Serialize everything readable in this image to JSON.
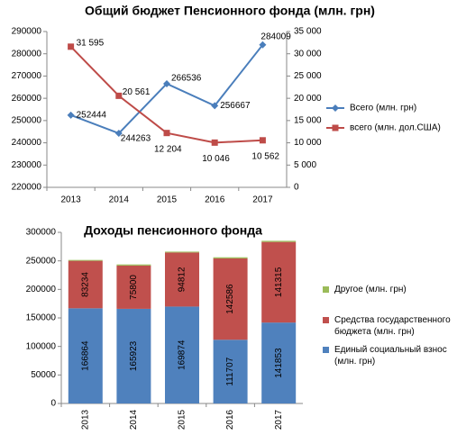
{
  "chart_data": [
    {
      "type": "line",
      "title": "Общий бюджет Пенсионного фонда (млн. грн)",
      "categories": [
        "2013",
        "2014",
        "2015",
        "2016",
        "2017"
      ],
      "series": [
        {
          "name": "Всего (млн. грн)",
          "color": "#4a7ebb",
          "marker": "diamond",
          "values": [
            252444,
            244263,
            266536,
            256667,
            284009
          ]
        },
        {
          "name": "всего (млн. дол.США)",
          "color": "#be4b48",
          "marker": "square",
          "axis": "y2",
          "values": [
            31595,
            20561,
            12204,
            10046,
            10562
          ],
          "value_labels": [
            "31 595",
            "20 561",
            "12 204",
            "10 046",
            "10 562"
          ]
        }
      ],
      "ylim": [
        220000,
        290000
      ],
      "yticks": [
        220000,
        230000,
        240000,
        250000,
        260000,
        270000,
        280000,
        290000
      ],
      "y2lim": [
        0,
        35000
      ],
      "y2ticks": [
        0,
        {
          "value": 5000,
          "label": "5 000"
        },
        {
          "value": 10000,
          "label": "10 000"
        },
        {
          "value": 15000,
          "label": "15 000"
        },
        {
          "value": 20000,
          "label": "20 000"
        },
        {
          "value": 25000,
          "label": "25 000"
        },
        {
          "value": 30000,
          "label": "30 000"
        },
        {
          "value": 35000,
          "label": "35 000"
        }
      ],
      "grid": false,
      "legend": "right"
    },
    {
      "type": "stacked-bar",
      "title": "Доходы пенсионного фонда",
      "categories": [
        "2013",
        "2014",
        "2015",
        "2016",
        "2017"
      ],
      "series": [
        {
          "name": "Единый социальный взнос (млн. грн)",
          "color": "#4f81bd",
          "values": [
            166864,
            165923,
            169874,
            111707,
            141853
          ]
        },
        {
          "name": "Средства государственного бюджета (млн. грн)",
          "color": "#c0504d",
          "values": [
            83234,
            75800,
            94812,
            142586,
            141315
          ]
        },
        {
          "name": "Другое (млн. грн)",
          "color": "#9bbb59",
          "values": [
            1500,
            2000,
            1500,
            2000,
            2000
          ]
        }
      ],
      "ylim": [
        0,
        300000
      ],
      "yticks": [
        0,
        50000,
        100000,
        150000,
        200000,
        250000,
        300000
      ],
      "grid": false,
      "legend": "right"
    }
  ]
}
